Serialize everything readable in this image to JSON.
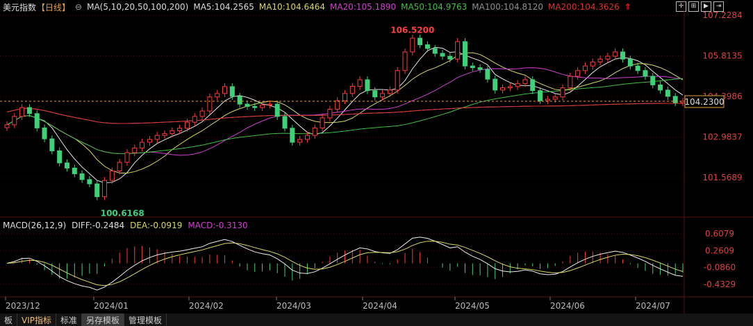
{
  "header": {
    "title": "美元指数",
    "period": "【日线】",
    "ma_label": "MA(5,10,20,50,100,200)",
    "ma5": "MA5:104.2565",
    "ma10": "MA10:104.6464",
    "ma20": "MA20:105.1890",
    "ma50": "MA50:104.9763",
    "ma100": "MA100:104.8120",
    "ma200": "MA200:104.3626"
  },
  "macd_header": {
    "label": "MACD(26,12,9)",
    "diff": "DIFF:-0.2484",
    "dea": "DEA:-0.0919",
    "macd": "MACD:-0.3130"
  },
  "colors": {
    "up": "#ff3b3b",
    "down": "#3fd07a",
    "ma5": "#e8e8e8",
    "ma10": "#d8d860",
    "ma20": "#d040d0",
    "ma50": "#40c040",
    "ma100": "#909090",
    "ma200": "#e03030",
    "price_line": "#e0a040"
  },
  "bottom_tabs": [
    "板",
    "VIP指标",
    "标准",
    "另存模板",
    "管理模板"
  ],
  "chart_data": {
    "type": "candlestick",
    "price_axis_ticks": [
      "107.2284",
      "105.8135",
      "104.3986",
      "102.9837",
      "101.5689"
    ],
    "macd_axis_ticks": [
      "0.6079",
      "0.2609",
      "-0.0860",
      "-0.4329"
    ],
    "current_price": "104.2300",
    "high_label": "106.5200",
    "low_label": "100.6168",
    "x_labels": [
      "2023/12",
      "2024/01",
      "2024/02",
      "2024/03",
      "2024/04",
      "2024/05",
      "2024/06",
      "2024/07"
    ],
    "closes": [
      103.41,
      103.7,
      104.01,
      103.8,
      103.3,
      102.92,
      102.5,
      102.08,
      101.9,
      101.7,
      101.5,
      101.35,
      100.9,
      101.47,
      101.8,
      102.1,
      102.44,
      102.6,
      102.8,
      102.9,
      103.04,
      103.1,
      103.2,
      103.29,
      103.5,
      103.7,
      103.89,
      104.38,
      104.5,
      104.74,
      104.4,
      104.13,
      104.05,
      104.01,
      104.1,
      104.13,
      103.7,
      103.29,
      102.8,
      102.9,
      103.04,
      103.3,
      103.65,
      103.95,
      104.25,
      104.5,
      104.75,
      104.98,
      104.6,
      104.38,
      104.5,
      104.62,
      105.3,
      105.95,
      106.43,
      106.2,
      106.07,
      105.9,
      105.8,
      105.7,
      106.31,
      105.46,
      105.4,
      105.34,
      105.0,
      104.62,
      104.7,
      104.74,
      104.85,
      104.98,
      104.6,
      104.25,
      104.3,
      104.38,
      104.7,
      105.1,
      105.3,
      105.46,
      105.6,
      105.7,
      105.8,
      105.95,
      105.7,
      105.46,
      105.3,
      105.1,
      104.8,
      104.62,
      104.4,
      104.18,
      104.23
    ]
  }
}
